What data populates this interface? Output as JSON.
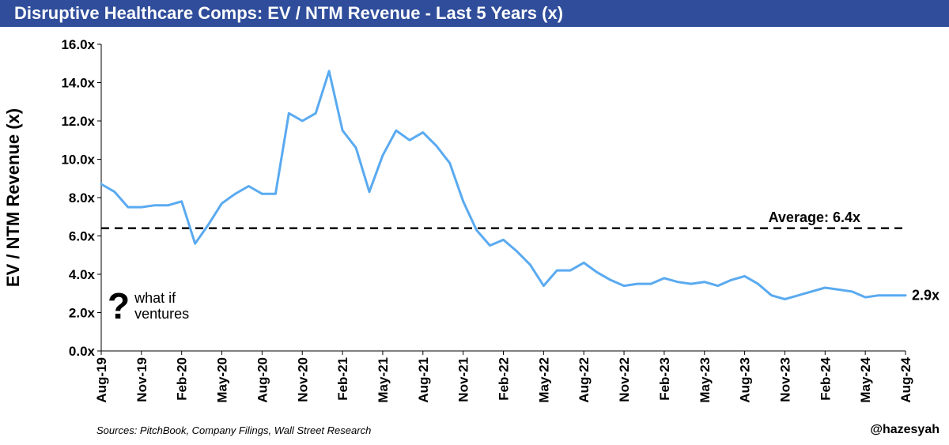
{
  "header": {
    "title": "Disruptive Healthcare Comps: EV / NTM Revenue - Last 5 Years (x)"
  },
  "logo": {
    "line1": "what if",
    "line2": "ventures",
    "mark": "?",
    "icon": "question-mark-icon"
  },
  "footer": {
    "source": "Sources: PitchBook, Company Filings, Wall Street Research",
    "handle": "@hazesyah"
  },
  "colors": {
    "title_bg": "#2f4d9a",
    "line": "#5aaaf0",
    "average_line": "#000000"
  },
  "chart_data": {
    "type": "line",
    "title": "Disruptive Healthcare Comps: EV / NTM Revenue - Last 5 Years (x)",
    "ylabel": "EV / NTM Revenue (x)",
    "xlabel": "",
    "ylim": [
      0,
      16
    ],
    "xlim": [
      "2019-08",
      "2024-08"
    ],
    "y_ticks": [
      "0.0x",
      "2.0x",
      "4.0x",
      "6.0x",
      "8.0x",
      "10.0x",
      "12.0x",
      "14.0x",
      "16.0x"
    ],
    "x_ticks": [
      "Aug-19",
      "Nov-19",
      "Feb-20",
      "May-20",
      "Aug-20",
      "Nov-20",
      "Feb-21",
      "May-21",
      "Aug-21",
      "Nov-21",
      "Feb-22",
      "May-22",
      "Aug-22",
      "Nov-22",
      "Feb-23",
      "May-23",
      "Aug-23",
      "Nov-23",
      "Feb-24",
      "May-24",
      "Aug-24"
    ],
    "grid": false,
    "average": {
      "value": 6.4,
      "label": "Average: 6.4x"
    },
    "last_label": "2.9x",
    "series": [
      {
        "x": [
          "2019-08",
          "2019-09",
          "2019-10",
          "2019-11",
          "2019-12",
          "2020-01",
          "2020-02",
          "2020-03",
          "2020-04",
          "2020-05",
          "2020-06",
          "2020-07",
          "2020-08",
          "2020-09",
          "2020-10",
          "2020-11",
          "2020-12",
          "2021-01",
          "2021-02",
          "2021-03",
          "2021-04",
          "2021-05",
          "2021-06",
          "2021-07",
          "2021-08",
          "2021-09",
          "2021-10",
          "2021-11",
          "2021-12",
          "2022-01",
          "2022-02",
          "2022-03",
          "2022-04",
          "2022-05",
          "2022-06",
          "2022-07",
          "2022-08",
          "2022-09",
          "2022-10",
          "2022-11",
          "2022-12",
          "2023-01",
          "2023-02",
          "2023-03",
          "2023-04",
          "2023-05",
          "2023-06",
          "2023-07",
          "2023-08",
          "2023-09",
          "2023-10",
          "2023-11",
          "2023-12",
          "2024-01",
          "2024-02",
          "2024-03",
          "2024-04",
          "2024-05",
          "2024-06",
          "2024-07",
          "2024-08"
        ],
        "values": [
          8.7,
          8.3,
          7.5,
          7.5,
          7.6,
          7.6,
          7.8,
          5.6,
          6.6,
          7.7,
          8.2,
          8.6,
          8.2,
          8.2,
          12.4,
          12.0,
          12.4,
          14.6,
          11.5,
          10.6,
          8.3,
          10.2,
          11.5,
          11.0,
          11.4,
          10.7,
          9.8,
          7.8,
          6.3,
          5.5,
          5.8,
          5.2,
          4.5,
          3.4,
          4.2,
          4.2,
          4.6,
          4.1,
          3.7,
          3.4,
          3.5,
          3.5,
          3.8,
          3.6,
          3.5,
          3.6,
          3.4,
          3.7,
          3.9,
          3.5,
          2.9,
          2.7,
          2.9,
          3.1,
          3.3,
          3.2,
          3.1,
          2.8,
          2.9,
          2.9,
          2.9
        ]
      }
    ]
  }
}
